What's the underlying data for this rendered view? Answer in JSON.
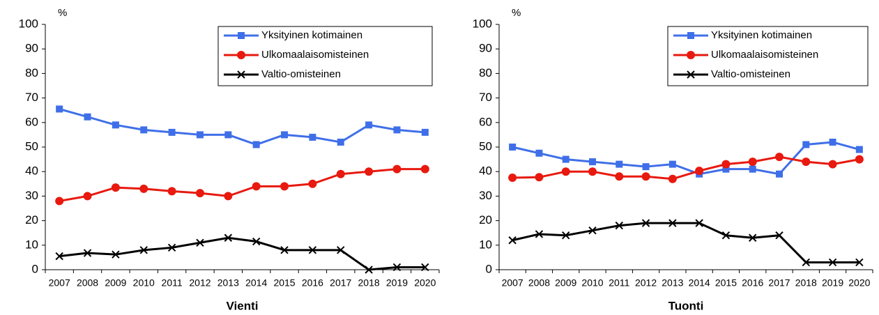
{
  "chart_data": [
    {
      "type": "line",
      "title": "Vienti",
      "ylabel": "%",
      "categories": [
        "2007",
        "2008",
        "2009",
        "2010",
        "2011",
        "2012",
        "2013",
        "2014",
        "2015",
        "2016",
        "2017",
        "2018",
        "2019",
        "2020"
      ],
      "ylim": [
        0,
        100
      ],
      "yticks": [
        0,
        10,
        20,
        30,
        40,
        50,
        60,
        70,
        80,
        90,
        100
      ],
      "grid": false,
      "legend": "upper right",
      "series": [
        {
          "name": "Yksityinen kotimainen",
          "color": "#3f6fe8",
          "marker": "square",
          "values": [
            65.5,
            62.3,
            59,
            57,
            56,
            55,
            55,
            51,
            55,
            54,
            52,
            59,
            57,
            56
          ]
        },
        {
          "name": "Ulkomaalaisomisteinen",
          "color": "#e8190f",
          "marker": "circle",
          "values": [
            28,
            30,
            33.5,
            33,
            32,
            31.2,
            30,
            34,
            34,
            35,
            39,
            40,
            41,
            41
          ]
        },
        {
          "name": "Valtio-omisteinen",
          "color": "#000000",
          "marker": "x",
          "values": [
            5.5,
            6.8,
            6.2,
            8,
            9,
            11,
            13,
            11.5,
            8,
            8,
            8,
            0,
            1,
            1
          ]
        }
      ]
    },
    {
      "type": "line",
      "title": "Tuonti",
      "ylabel": "%",
      "categories": [
        "2007",
        "2008",
        "2009",
        "2010",
        "2011",
        "2012",
        "2013",
        "2014",
        "2015",
        "2016",
        "2017",
        "2018",
        "2019",
        "2020"
      ],
      "ylim": [
        0,
        100
      ],
      "yticks": [
        0,
        10,
        20,
        30,
        40,
        50,
        60,
        70,
        80,
        90,
        100
      ],
      "grid": false,
      "legend": "upper right",
      "series": [
        {
          "name": "Yksityinen kotimainen",
          "color": "#3f6fe8",
          "marker": "square",
          "values": [
            50,
            47.5,
            45,
            44,
            43,
            42,
            43,
            39,
            41,
            41,
            39,
            51,
            52,
            49
          ]
        },
        {
          "name": "Ulkomaalaisomisteinen",
          "color": "#e8190f",
          "marker": "circle",
          "values": [
            37.5,
            37.7,
            40,
            40,
            38,
            38,
            37,
            40.3,
            43,
            44,
            46,
            44,
            43,
            45
          ]
        },
        {
          "name": "Valtio-omisteinen",
          "color": "#000000",
          "marker": "x",
          "values": [
            12,
            14.5,
            14,
            16,
            18,
            19,
            19,
            19,
            14,
            13,
            14,
            3,
            3,
            3
          ]
        }
      ]
    }
  ]
}
